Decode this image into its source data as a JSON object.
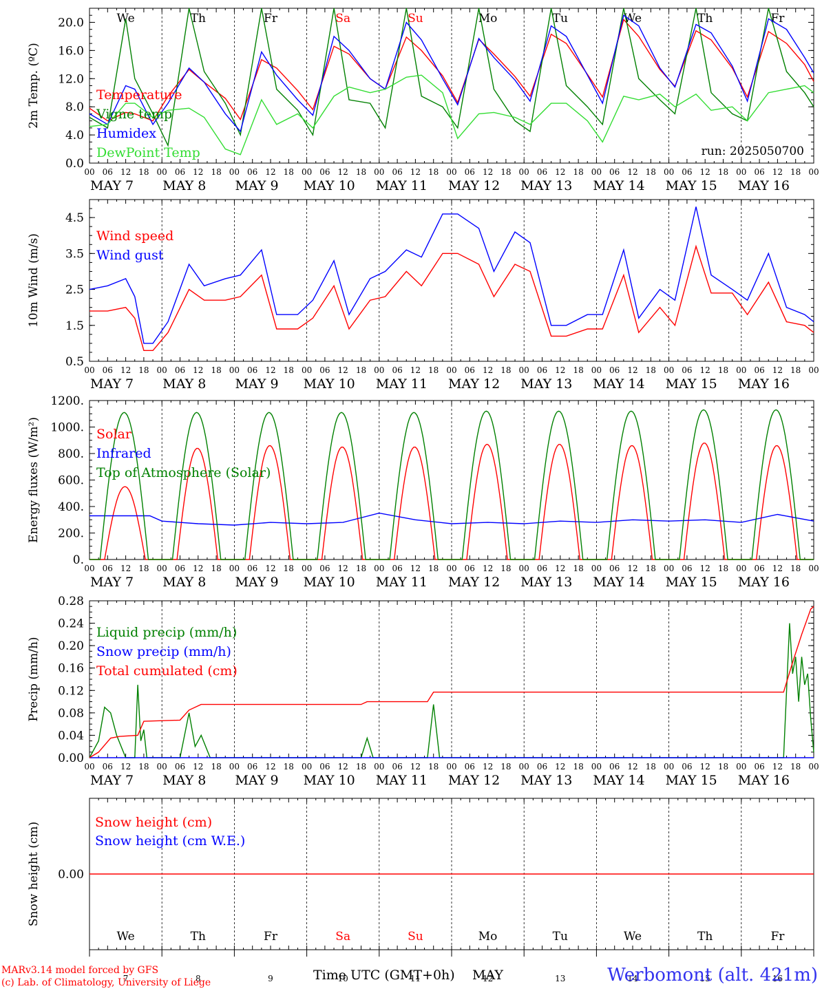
{
  "colors": {
    "red": "#ff0000",
    "blue": "#0000ff",
    "green": "#008000",
    "lightgreen": "#33dd33",
    "weekend": "#ff0000",
    "station": "#3333ee"
  },
  "days": {
    "weekday_labels": [
      "We",
      "Th",
      "Fr",
      "Sa",
      "Su",
      "Mo",
      "Tu",
      "We",
      "Th",
      "Fr"
    ],
    "weekend_flags": [
      false,
      false,
      false,
      true,
      true,
      false,
      false,
      false,
      false,
      false
    ],
    "date_labels": [
      "MAY  7",
      "MAY  8",
      "MAY  9",
      "MAY 10",
      "MAY 11",
      "MAY 12",
      "MAY 13",
      "MAY 14",
      "MAY 15",
      "MAY 16"
    ],
    "hour_labels": [
      "00",
      "06",
      "12",
      "18"
    ],
    "final_hour_label": "00",
    "day_numbers": [
      "7",
      "8",
      "9",
      "10",
      "11",
      "12",
      "13",
      "14",
      "15",
      "16"
    ]
  },
  "footer": {
    "credit_line1": "MARv3.14 model forced by GFS",
    "credit_line2": "(c) Lab. of Climatology, University of Liege",
    "x_axis_label": "Time UTC (GMT+0h)",
    "month": "MAY",
    "station": "Werbomont (alt. 421m)"
  },
  "chart_data": [
    {
      "id": "temperature",
      "type": "line",
      "ylabel": "2m Temp. (ºC)",
      "ylim": [
        0,
        22
      ],
      "yticks": [
        "0.0",
        "4.0",
        "8.0",
        "12.0",
        "16.0",
        "20.0"
      ],
      "annotation": "run: 2025050700",
      "x_unit": "hours since May 7 00 UTC",
      "series": [
        {
          "name": "Temperature",
          "color": "#ff0000",
          "x": [
            0,
            6,
            12,
            15,
            21,
            26,
            33,
            38,
            45,
            50,
            57,
            62,
            69,
            74,
            81,
            86,
            93,
            98,
            105,
            110,
            117,
            122,
            129,
            134,
            141,
            146,
            153,
            158,
            165,
            170,
            177,
            182,
            189,
            194,
            201,
            206,
            213,
            218,
            225,
            231,
            237,
            240
          ],
          "y": [
            7.8,
            6.0,
            7.2,
            7.0,
            6.0,
            9.5,
            13.3,
            11.5,
            9.2,
            6.2,
            14.7,
            13.5,
            10.3,
            7.6,
            16.6,
            15.5,
            12.0,
            10.5,
            17.9,
            16.0,
            12.4,
            8.6,
            17.6,
            15.5,
            12.3,
            9.5,
            18.3,
            17.0,
            12.6,
            9.4,
            20.4,
            18.0,
            13.3,
            10.9,
            18.8,
            17.5,
            13.5,
            9.4,
            18.7,
            17.0,
            14.0,
            11.6
          ]
        },
        {
          "name": "Vigne temp",
          "color": "#008000",
          "x": [
            0,
            6,
            12,
            15,
            21,
            26,
            33,
            38,
            45,
            50,
            57,
            62,
            69,
            74,
            81,
            86,
            93,
            98,
            105,
            110,
            117,
            122,
            129,
            134,
            141,
            146,
            153,
            158,
            165,
            170,
            177,
            182,
            189,
            194,
            201,
            206,
            213,
            218,
            225,
            231,
            237,
            240
          ],
          "y": [
            6.5,
            5.0,
            20.5,
            12.0,
            7.0,
            2.5,
            22.0,
            13.0,
            8.5,
            4.0,
            22.0,
            10.5,
            7.5,
            4.0,
            22.0,
            9.0,
            8.5,
            5.0,
            22.0,
            9.5,
            8.0,
            5.0,
            22.0,
            10.5,
            6.0,
            4.5,
            22.0,
            11.0,
            8.0,
            5.5,
            22.0,
            12.0,
            9.0,
            7.0,
            22.0,
            10.0,
            7.0,
            6.0,
            22.0,
            13.0,
            10.0,
            8.0
          ]
        },
        {
          "name": "Humidex",
          "color": "#0000ff",
          "x": [
            0,
            6,
            12,
            15,
            21,
            26,
            33,
            38,
            45,
            50,
            57,
            62,
            69,
            74,
            81,
            86,
            93,
            98,
            105,
            110,
            117,
            122,
            129,
            134,
            141,
            146,
            153,
            158,
            165,
            170,
            177,
            182,
            189,
            194,
            201,
            206,
            213,
            218,
            225,
            231,
            237,
            240
          ],
          "y": [
            7.0,
            5.5,
            11.0,
            10.5,
            5.5,
            8.5,
            13.5,
            11.5,
            7.0,
            4.5,
            15.8,
            12.5,
            9.0,
            6.8,
            18.0,
            16.0,
            12.0,
            10.5,
            20.0,
            17.5,
            12.0,
            8.3,
            17.7,
            15.0,
            11.8,
            8.8,
            19.5,
            18.0,
            12.5,
            8.5,
            21.0,
            19.5,
            13.5,
            10.8,
            19.7,
            18.5,
            13.8,
            8.8,
            20.5,
            19.0,
            15.0,
            12.8
          ]
        },
        {
          "name": "DewPoint Temp",
          "color": "#33dd33",
          "x": [
            0,
            6,
            12,
            15,
            21,
            26,
            33,
            38,
            45,
            50,
            57,
            62,
            69,
            74,
            81,
            86,
            93,
            98,
            105,
            110,
            117,
            122,
            129,
            134,
            141,
            146,
            153,
            158,
            165,
            170,
            177,
            182,
            189,
            194,
            201,
            206,
            213,
            218,
            225,
            231,
            237,
            240
          ],
          "y": [
            5.2,
            5.5,
            8.5,
            8.5,
            6.5,
            7.5,
            7.8,
            6.5,
            2.0,
            1.2,
            9.0,
            5.5,
            7.0,
            5.0,
            9.5,
            10.8,
            10.0,
            10.5,
            12.2,
            12.5,
            10.0,
            3.5,
            7.0,
            7.2,
            6.5,
            5.5,
            8.5,
            8.5,
            6.0,
            3.0,
            9.5,
            9.0,
            9.8,
            8.0,
            9.8,
            7.5,
            8.0,
            6.0,
            10.0,
            10.5,
            11.0,
            10.0
          ]
        }
      ]
    },
    {
      "id": "wind",
      "type": "line",
      "ylabel": "10m Wind (m/s)",
      "ylim": [
        0.5,
        5.0
      ],
      "yticks": [
        "0.5",
        "1.5",
        "2.5",
        "3.5",
        "4.5"
      ],
      "x_unit": "hours since May 7 00 UTC",
      "series": [
        {
          "name": "Wind speed",
          "color": "#ff0000",
          "x": [
            0,
            6,
            12,
            15,
            18,
            21,
            26,
            33,
            38,
            45,
            50,
            57,
            62,
            69,
            74,
            81,
            86,
            93,
            98,
            105,
            110,
            117,
            122,
            129,
            134,
            141,
            146,
            153,
            158,
            165,
            170,
            177,
            182,
            189,
            194,
            201,
            206,
            213,
            218,
            225,
            231,
            237,
            240
          ],
          "y": [
            1.9,
            1.9,
            2.0,
            1.7,
            0.8,
            0.8,
            1.3,
            2.5,
            2.2,
            2.2,
            2.3,
            2.9,
            1.4,
            1.4,
            1.7,
            2.6,
            1.4,
            2.2,
            2.3,
            3.0,
            2.6,
            3.5,
            3.5,
            3.2,
            2.3,
            3.2,
            3.0,
            1.2,
            1.2,
            1.4,
            1.4,
            2.9,
            1.3,
            2.0,
            1.5,
            3.7,
            2.4,
            2.4,
            1.8,
            2.7,
            1.6,
            1.5,
            1.3
          ]
        },
        {
          "name": "Wind gust",
          "color": "#0000ff",
          "x": [
            0,
            6,
            12,
            15,
            18,
            21,
            26,
            33,
            38,
            45,
            50,
            57,
            62,
            69,
            74,
            81,
            86,
            93,
            98,
            105,
            110,
            117,
            122,
            129,
            134,
            141,
            146,
            153,
            158,
            165,
            170,
            177,
            182,
            189,
            194,
            201,
            206,
            213,
            218,
            225,
            231,
            237,
            240
          ],
          "y": [
            2.5,
            2.6,
            2.8,
            2.3,
            1.0,
            1.0,
            1.6,
            3.2,
            2.6,
            2.8,
            2.9,
            3.6,
            1.8,
            1.8,
            2.2,
            3.3,
            1.8,
            2.8,
            3.0,
            3.6,
            3.4,
            4.6,
            4.6,
            4.2,
            3.0,
            4.1,
            3.8,
            1.5,
            1.5,
            1.8,
            1.8,
            3.6,
            1.7,
            2.5,
            2.2,
            4.8,
            2.9,
            2.5,
            2.2,
            3.5,
            2.0,
            1.8,
            1.6
          ]
        }
      ]
    },
    {
      "id": "energy",
      "type": "line",
      "ylabel": "Energy fluxes (W/m²)",
      "ylim": [
        0,
        1200
      ],
      "yticks": [
        "0.",
        "200.",
        "400.",
        "600.",
        "800.",
        "1000.",
        "1200."
      ],
      "x_unit": "hours since May 7 00 UTC",
      "series": [
        {
          "name": "Solar",
          "color": "#ff0000",
          "peaks": [
            550,
            840,
            860,
            850,
            850,
            870,
            870,
            860,
            880,
            860
          ]
        },
        {
          "name": "Infrared",
          "color": "#0000ff",
          "x": [
            0,
            12,
            20,
            24,
            36,
            48,
            60,
            72,
            84,
            96,
            108,
            120,
            132,
            144,
            156,
            168,
            180,
            192,
            204,
            216,
            228,
            240
          ],
          "y": [
            330,
            330,
            330,
            290,
            270,
            260,
            280,
            270,
            280,
            350,
            300,
            270,
            280,
            270,
            290,
            280,
            300,
            290,
            300,
            280,
            340,
            290
          ]
        },
        {
          "name": "Top of Atmosphere (Solar)",
          "color": "#008000",
          "peaks": [
            1110,
            1110,
            1110,
            1110,
            1110,
            1120,
            1120,
            1120,
            1130,
            1130
          ]
        }
      ]
    },
    {
      "id": "precip",
      "type": "line",
      "ylabel": "Precip (mm/h)",
      "ylim": [
        0,
        0.28
      ],
      "yticks": [
        "0.00",
        "0.04",
        "0.08",
        "0.12",
        "0.16",
        "0.20",
        "0.24",
        "0.28"
      ],
      "x_unit": "hours since May 7 00 UTC",
      "series": [
        {
          "name": "Liquid precip (mm/h)",
          "color": "#008000",
          "x": [
            0,
            3,
            5,
            7,
            9,
            12,
            15,
            16,
            17,
            18,
            19,
            20,
            30,
            33,
            35,
            37,
            40,
            42,
            90,
            92,
            94,
            112,
            114,
            116,
            230,
            232,
            233,
            234,
            235,
            236,
            237,
            238,
            239,
            240
          ],
          "y": [
            0,
            0.03,
            0.09,
            0.08,
            0.04,
            0,
            0,
            0.13,
            0.03,
            0.05,
            0,
            0,
            0,
            0.08,
            0.02,
            0.04,
            0,
            0,
            0,
            0.035,
            0,
            0,
            0.095,
            0,
            0,
            0.24,
            0.15,
            0.18,
            0.1,
            0.18,
            0.13,
            0.15,
            0.07,
            0.01
          ]
        },
        {
          "name": "Snow precip (mm/h)",
          "color": "#0000ff",
          "x": [
            0,
            240
          ],
          "y": [
            0,
            0
          ]
        },
        {
          "name": "Total cumulated (cm)",
          "color": "#ff0000",
          "x": [
            0,
            3,
            7,
            10,
            16,
            18,
            30,
            33,
            37,
            90,
            92,
            112,
            114,
            230,
            233,
            236,
            239,
            240
          ],
          "y": [
            0,
            0.01,
            0.035,
            0.038,
            0.04,
            0.065,
            0.067,
            0.085,
            0.095,
            0.095,
            0.1,
            0.1,
            0.117,
            0.117,
            0.17,
            0.22,
            0.265,
            0.27
          ]
        }
      ]
    },
    {
      "id": "snow",
      "type": "line",
      "ylabel": "Snow height (cm)",
      "yticks": [
        "0.00"
      ],
      "x_unit": "hours since May 7 00 UTC",
      "series": [
        {
          "name": "Snow height (cm)",
          "color": "#ff0000",
          "x": [
            0,
            240
          ],
          "y": [
            0,
            0
          ]
        },
        {
          "name": "Snow height (cm W.E.)",
          "color": "#0000ff",
          "x": [
            0,
            240
          ],
          "y": [
            0,
            0
          ]
        }
      ]
    }
  ]
}
